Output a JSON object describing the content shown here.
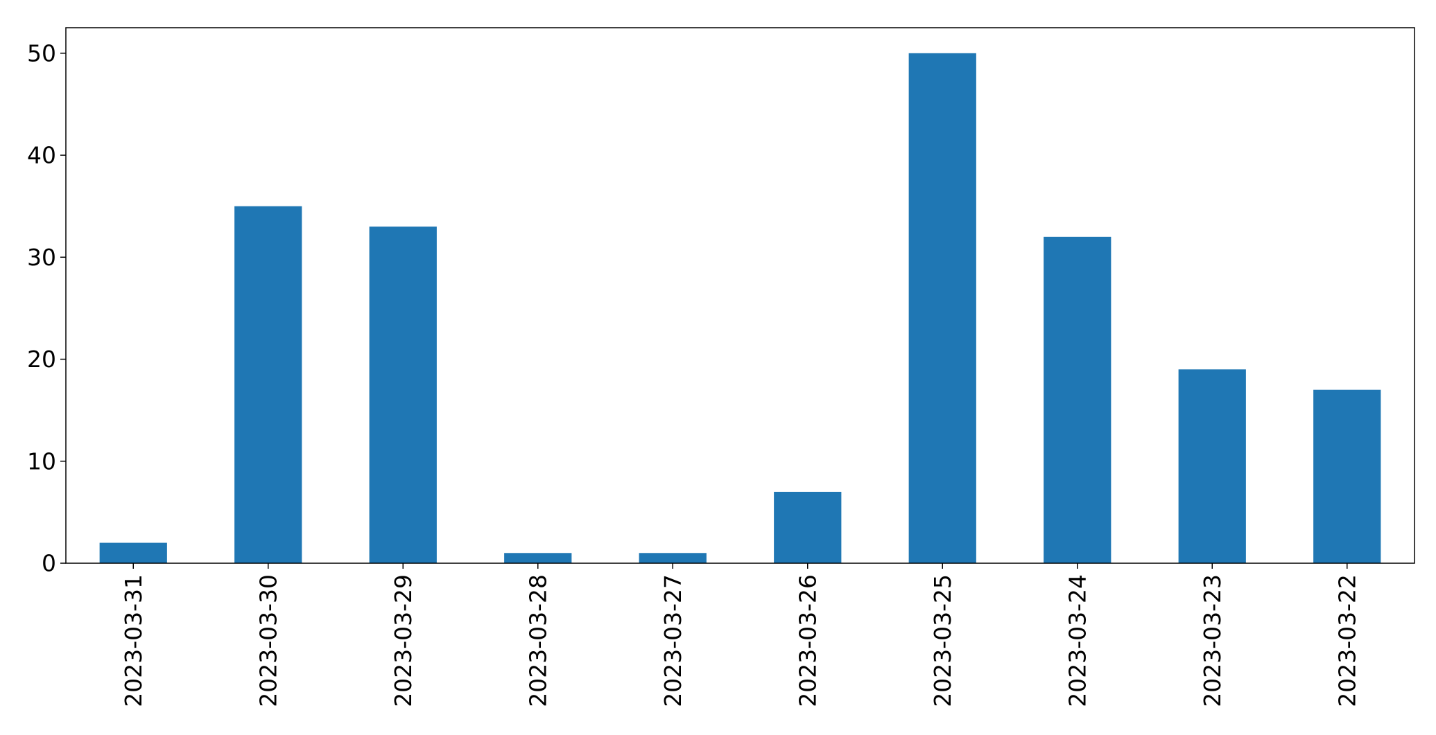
{
  "chart_data": {
    "type": "bar",
    "categories": [
      "2023-03-31",
      "2023-03-30",
      "2023-03-29",
      "2023-03-28",
      "2023-03-27",
      "2023-03-26",
      "2023-03-25",
      "2023-03-24",
      "2023-03-23",
      "2023-03-22"
    ],
    "values": [
      2,
      35,
      33,
      1,
      1,
      7,
      50,
      32,
      19,
      17
    ],
    "title": "",
    "xlabel": "",
    "ylabel": "",
    "ylim": [
      0,
      52.5
    ],
    "yticks": [
      "0",
      "10",
      "20",
      "30",
      "40",
      "50"
    ],
    "grid": false,
    "bar_color": "#1f77b4"
  }
}
